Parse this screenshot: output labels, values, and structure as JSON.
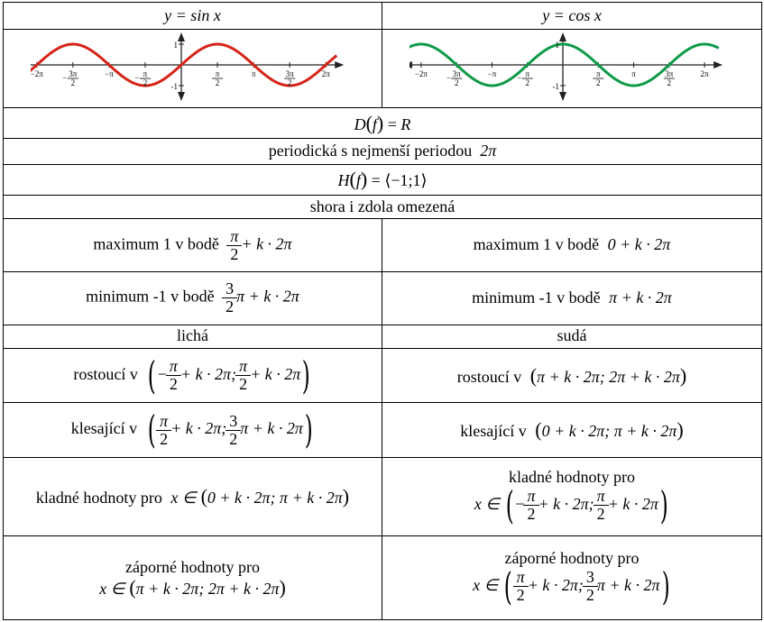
{
  "header": {
    "sin_title": "y = sin x",
    "cos_title": "y = cos x"
  },
  "graphs": {
    "sin_color": "#d62418",
    "cos_color": "#0e9a47",
    "axis_color": "#222222",
    "tick_labels": {
      "minus_two_pi": "−2π",
      "minus_three_pi_num": "3π",
      "minus_pi": "−π",
      "minus_half_pi_num": "π",
      "half_pi_num": "π",
      "pi": "π",
      "three_pi_num": "3π",
      "two_pi": "2π",
      "den": "2",
      "minus": "−",
      "y_one": "1",
      "y_minus_one": "-1"
    }
  },
  "rows": {
    "domain": {
      "lhs": "D",
      "arg": "f",
      "rhs": "R"
    },
    "period": {
      "text": "periodická s nejmenší periodou",
      "value": "2π"
    },
    "range": {
      "lhs": "H",
      "arg": "f",
      "interval": "⟨−1;1⟩"
    },
    "bounded": {
      "text": "shora i zdola omezená"
    },
    "max": {
      "label": "maximum 1 v bodě",
      "sin_num": "π",
      "sin_den": "2",
      "sin_tail": "+ k · 2π",
      "cos_expr": "0 + k · 2π"
    },
    "min": {
      "label": "minimum -1 v bodě",
      "sin_num": "3",
      "sin_den": "2",
      "sin_tail": "π + k · 2π",
      "cos_expr": "π + k · 2π"
    },
    "parity": {
      "sin": "lichá",
      "cos": "sudá"
    },
    "increasing": {
      "label": "rostoucí v",
      "sin_minus": "−",
      "sin_num1": "π",
      "sin_den1": "2",
      "sin_mid": "+ k · 2π;",
      "sin_num2": "π",
      "sin_den2": "2",
      "sin_tail": "+ k · 2π",
      "cos_expr": "π + k · 2π; 2π + k · 2π"
    },
    "decreasing": {
      "label": "klesající v",
      "sin_num1": "π",
      "sin_den1": "2",
      "sin_mid": "+ k · 2π;",
      "sin_num2": "3",
      "sin_den2": "2",
      "sin_tail": "π + k · 2π",
      "cos_expr": "0 + k · 2π; π + k · 2π"
    },
    "positive": {
      "label": "kladné hodnoty pro",
      "var": "x ∈",
      "sin_expr": "0 + k · 2π; π + k · 2π",
      "cos_minus": "−",
      "cos_num1": "π",
      "cos_den1": "2",
      "cos_mid": "+ k · 2π;",
      "cos_num2": "π",
      "cos_den2": "2",
      "cos_tail": "+ k · 2π"
    },
    "negative": {
      "label": "záporné hodnoty pro",
      "var": "x ∈",
      "sin_expr": "π + k · 2π; 2π + k · 2π",
      "cos_num1": "π",
      "cos_den1": "2",
      "cos_mid": "+ k · 2π;",
      "cos_num2": "3",
      "cos_den2": "2",
      "cos_tail": "π + k · 2π"
    }
  }
}
